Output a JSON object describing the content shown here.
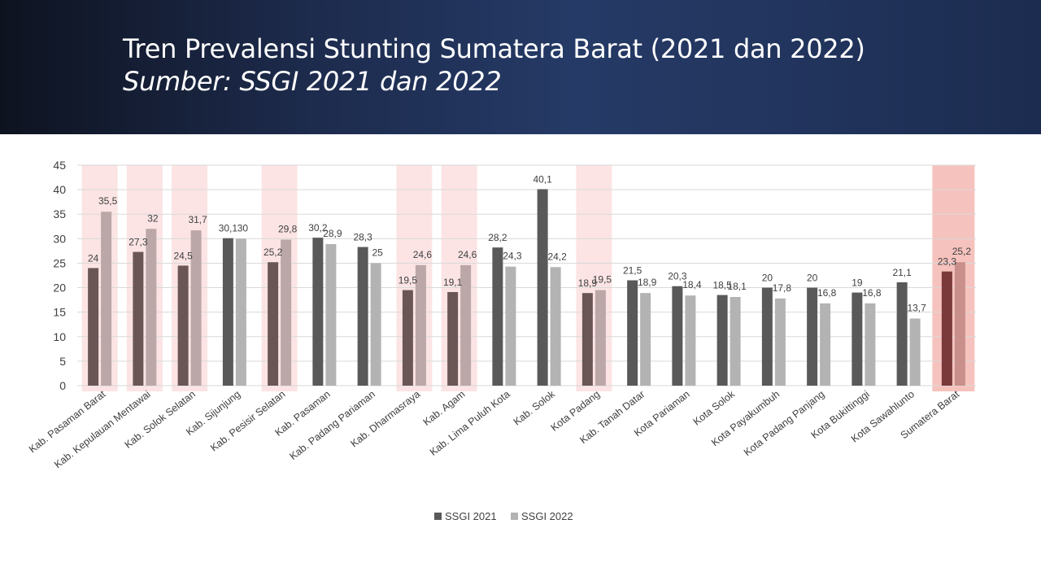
{
  "header": {
    "title": "Tren Prevalensi Stunting Sumatera Barat (2021 dan 2022)",
    "subtitle": "Sumber: SSGI 2021 dan 2022"
  },
  "chart_data": {
    "type": "bar",
    "title": "",
    "xlabel": "",
    "ylabel": "",
    "ylim": [
      0,
      45
    ],
    "yticks": [
      0,
      5,
      10,
      15,
      20,
      25,
      30,
      35,
      40,
      45
    ],
    "grid": true,
    "legend_position": "bottom",
    "categories": [
      "Kab. Pasaman Barat",
      "Kab. Kepulauan Mentawai",
      "Kab. Solok Selatan",
      "Kab. Sijunjung",
      "Kab. Pesisir Selatan",
      "Kab. Pasaman",
      "Kab. Padang Pariaman",
      "Kab. Dharmasraya",
      "Kab. Agam",
      "Kab. Lima Puluh Kota",
      "Kab. Solok",
      "Kota Padang",
      "Kab. Tanah Datar",
      "Kota Pariaman",
      "Kota Solok",
      "Kota Payakumbuh",
      "Kota Padang Panjang",
      "Kota Bukittinggi",
      "Kota Sawahlunto",
      "Sumatera Barat"
    ],
    "series": [
      {
        "name": "SSGI 2021",
        "color": "#595959",
        "values": [
          24,
          27.3,
          24.5,
          30.1,
          25.2,
          30.2,
          28.3,
          19.5,
          19.1,
          28.2,
          40.1,
          18.9,
          21.5,
          20.3,
          18.5,
          20,
          20,
          19,
          21.1,
          23.3
        ]
      },
      {
        "name": "SSGI 2022",
        "color": "#b3b3b3",
        "values": [
          35.5,
          32,
          31.7,
          30,
          29.8,
          28.9,
          25,
          24.6,
          24.6,
          24.3,
          24.2,
          19.5,
          18.9,
          18.4,
          18.1,
          17.8,
          16.8,
          16.8,
          13.7,
          25.2
        ]
      }
    ],
    "highlighted_categories": [
      "Kab. Pasaman Barat",
      "Kab. Kepulauan Mentawai",
      "Kab. Solok Selatan",
      "Kab. Pesisir Selatan",
      "Kab. Dharmasraya",
      "Kab. Agam",
      "Kota Padang"
    ],
    "emphasized_category": "Sumatera Barat",
    "highlight_color": "#fce4e4",
    "emphasis_color": "#f6c2bd"
  }
}
